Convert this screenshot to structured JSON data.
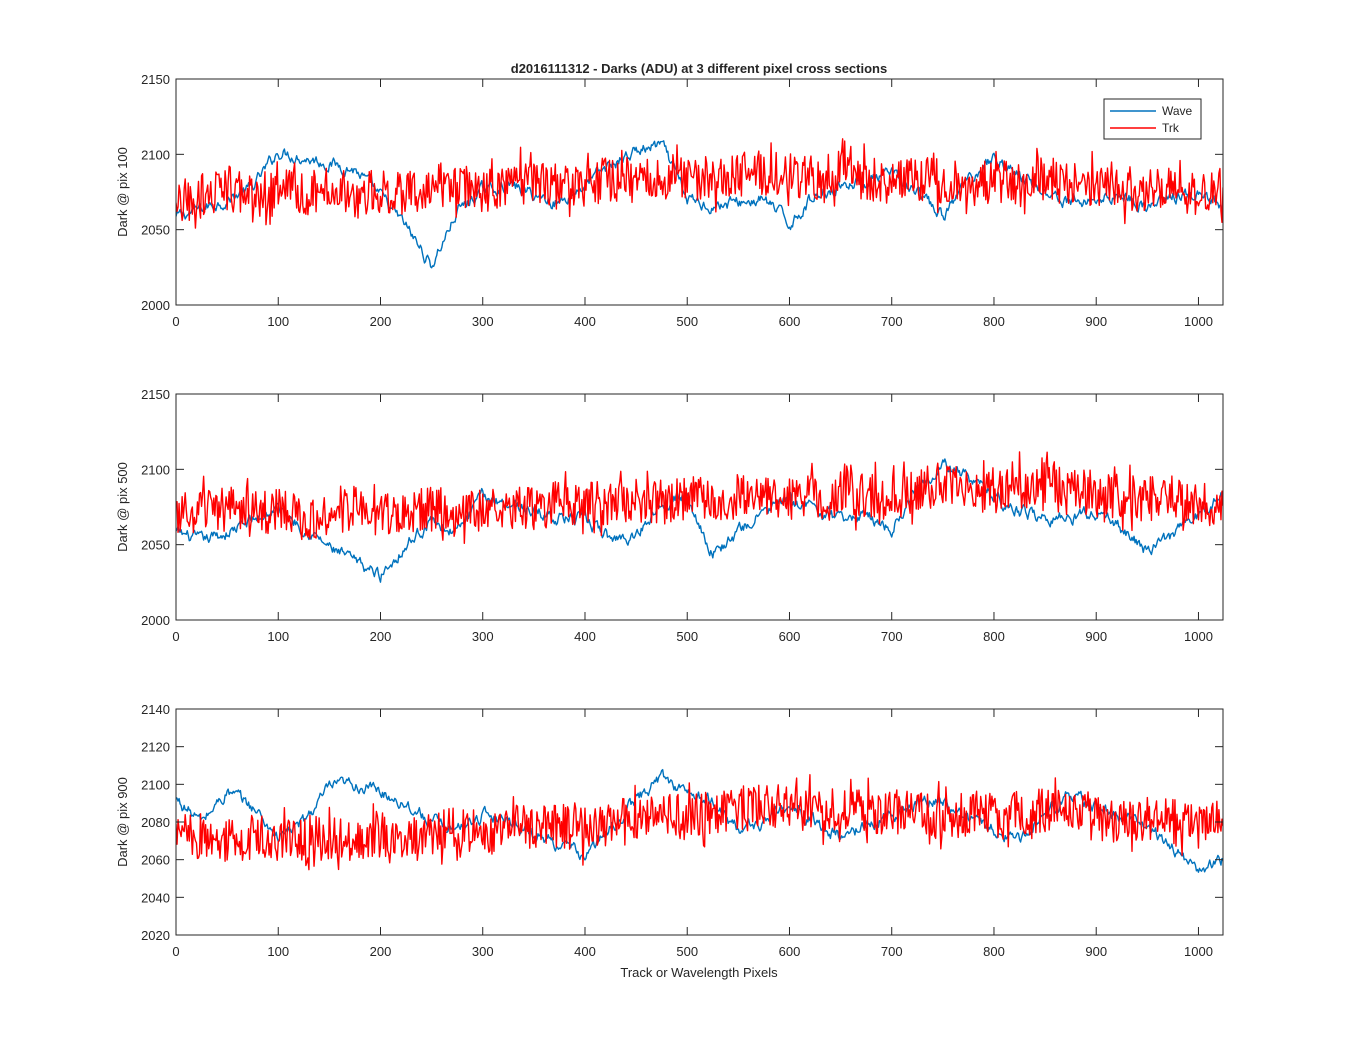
{
  "figure": {
    "title": "d2016111312 - Darks (ADU) at 3 different pixel cross sections",
    "xlabel": "Track or Wavelength Pixels"
  },
  "colors": {
    "Wave": "#0072BD",
    "Trk": "#FF0000",
    "axes": "#262626",
    "background": "#ffffff"
  },
  "chart_data": [
    {
      "type": "line",
      "ylabel": "Dark @ pix 100",
      "xlim": [
        0,
        1024
      ],
      "ylim": [
        2000,
        2150
      ],
      "xticks": [
        0,
        100,
        200,
        300,
        400,
        500,
        600,
        700,
        800,
        900,
        1000
      ],
      "yticks": [
        2000,
        2050,
        2100,
        2150
      ],
      "legend": {
        "location": "top-right",
        "entries": [
          "Wave",
          "Trk"
        ]
      },
      "grid": false,
      "series": [
        {
          "name": "Wave",
          "x": [
            0,
            25,
            50,
            75,
            100,
            125,
            150,
            175,
            200,
            225,
            250,
            275,
            300,
            325,
            350,
            375,
            400,
            425,
            450,
            475,
            500,
            525,
            550,
            575,
            600,
            625,
            650,
            675,
            700,
            725,
            750,
            775,
            800,
            825,
            850,
            875,
            900,
            925,
            950,
            975,
            1000,
            1024
          ],
          "values": [
            2058,
            2064,
            2070,
            2078,
            2102,
            2098,
            2094,
            2090,
            2072,
            2052,
            2026,
            2062,
            2076,
            2080,
            2073,
            2068,
            2080,
            2093,
            2102,
            2106,
            2070,
            2066,
            2068,
            2070,
            2054,
            2073,
            2080,
            2082,
            2086,
            2074,
            2058,
            2084,
            2098,
            2086,
            2075,
            2068,
            2070,
            2074,
            2064,
            2072,
            2073,
            2062
          ]
        },
        {
          "name": "Trk",
          "x": [
            0,
            25,
            50,
            75,
            100,
            125,
            150,
            175,
            200,
            225,
            250,
            275,
            300,
            325,
            350,
            375,
            400,
            425,
            450,
            475,
            500,
            525,
            550,
            575,
            600,
            625,
            650,
            675,
            700,
            725,
            750,
            775,
            800,
            825,
            850,
            875,
            900,
            925,
            950,
            975,
            1000,
            1024
          ],
          "values": [
            2064,
            2072,
            2078,
            2070,
            2076,
            2074,
            2078,
            2072,
            2076,
            2074,
            2080,
            2078,
            2076,
            2080,
            2082,
            2078,
            2080,
            2084,
            2082,
            2084,
            2086,
            2084,
            2086,
            2088,
            2086,
            2084,
            2088,
            2084,
            2082,
            2084,
            2082,
            2080,
            2082,
            2080,
            2084,
            2080,
            2078,
            2078,
            2076,
            2078,
            2074,
            2076
          ]
        }
      ]
    },
    {
      "type": "line",
      "ylabel": "Dark @ pix 500",
      "xlim": [
        0,
        1024
      ],
      "ylim": [
        2000,
        2150
      ],
      "xticks": [
        0,
        100,
        200,
        300,
        400,
        500,
        600,
        700,
        800,
        900,
        1000
      ],
      "yticks": [
        2000,
        2050,
        2100,
        2150
      ],
      "grid": false,
      "series": [
        {
          "name": "Wave",
          "x": [
            0,
            25,
            50,
            75,
            100,
            125,
            150,
            175,
            200,
            225,
            250,
            275,
            300,
            325,
            350,
            375,
            400,
            425,
            450,
            475,
            500,
            525,
            550,
            575,
            600,
            625,
            650,
            675,
            700,
            725,
            750,
            775,
            800,
            825,
            850,
            875,
            900,
            925,
            950,
            975,
            1000,
            1024
          ],
          "values": [
            2058,
            2052,
            2058,
            2066,
            2074,
            2062,
            2048,
            2038,
            2030,
            2050,
            2066,
            2058,
            2082,
            2078,
            2072,
            2068,
            2066,
            2054,
            2056,
            2080,
            2082,
            2044,
            2058,
            2072,
            2080,
            2074,
            2066,
            2070,
            2060,
            2090,
            2104,
            2094,
            2082,
            2072,
            2068,
            2068,
            2072,
            2060,
            2046,
            2056,
            2070,
            2084
          ]
        },
        {
          "name": "Trk",
          "x": [
            0,
            25,
            50,
            75,
            100,
            125,
            150,
            175,
            200,
            225,
            250,
            275,
            300,
            325,
            350,
            375,
            400,
            425,
            450,
            475,
            500,
            525,
            550,
            575,
            600,
            625,
            650,
            675,
            700,
            725,
            750,
            775,
            800,
            825,
            850,
            875,
            900,
            925,
            950,
            975,
            1000,
            1024
          ],
          "values": [
            2068,
            2072,
            2074,
            2070,
            2072,
            2068,
            2070,
            2074,
            2070,
            2072,
            2074,
            2070,
            2072,
            2076,
            2074,
            2078,
            2076,
            2078,
            2080,
            2078,
            2082,
            2080,
            2082,
            2084,
            2082,
            2080,
            2084,
            2082,
            2080,
            2086,
            2090,
            2088,
            2086,
            2088,
            2090,
            2086,
            2084,
            2082,
            2080,
            2082,
            2078,
            2076
          ]
        }
      ]
    },
    {
      "type": "line",
      "ylabel": "Dark @ pix 900",
      "xlabel": "Track or Wavelength Pixels",
      "xlim": [
        0,
        1024
      ],
      "ylim": [
        2020,
        2140
      ],
      "xticks": [
        0,
        100,
        200,
        300,
        400,
        500,
        600,
        700,
        800,
        900,
        1000
      ],
      "yticks": [
        2020,
        2040,
        2060,
        2080,
        2100,
        2120,
        2140
      ],
      "grid": false,
      "series": [
        {
          "name": "Wave",
          "x": [
            0,
            25,
            50,
            75,
            100,
            125,
            150,
            175,
            200,
            225,
            250,
            275,
            300,
            325,
            350,
            375,
            400,
            425,
            450,
            475,
            500,
            525,
            550,
            575,
            600,
            625,
            650,
            675,
            700,
            725,
            750,
            775,
            800,
            825,
            850,
            875,
            900,
            925,
            950,
            975,
            1000,
            1024
          ],
          "values": [
            2092,
            2080,
            2096,
            2088,
            2072,
            2080,
            2098,
            2100,
            2096,
            2090,
            2080,
            2076,
            2084,
            2082,
            2074,
            2068,
            2062,
            2076,
            2092,
            2104,
            2096,
            2090,
            2076,
            2080,
            2088,
            2080,
            2072,
            2078,
            2084,
            2090,
            2092,
            2082,
            2076,
            2070,
            2086,
            2094,
            2088,
            2082,
            2078,
            2066,
            2054,
            2060
          ]
        },
        {
          "name": "Trk",
          "x": [
            0,
            25,
            50,
            75,
            100,
            125,
            150,
            175,
            200,
            225,
            250,
            275,
            300,
            325,
            350,
            375,
            400,
            425,
            450,
            475,
            500,
            525,
            550,
            575,
            600,
            625,
            650,
            675,
            700,
            725,
            750,
            775,
            800,
            825,
            850,
            875,
            900,
            925,
            950,
            975,
            1000,
            1024
          ],
          "values": [
            2074,
            2072,
            2070,
            2072,
            2068,
            2070,
            2072,
            2070,
            2074,
            2072,
            2074,
            2076,
            2074,
            2078,
            2076,
            2078,
            2076,
            2080,
            2082,
            2084,
            2082,
            2086,
            2088,
            2090,
            2088,
            2086,
            2088,
            2084,
            2086,
            2084,
            2082,
            2084,
            2086,
            2084,
            2086,
            2084,
            2082,
            2080,
            2082,
            2080,
            2078,
            2080
          ]
        }
      ]
    }
  ]
}
